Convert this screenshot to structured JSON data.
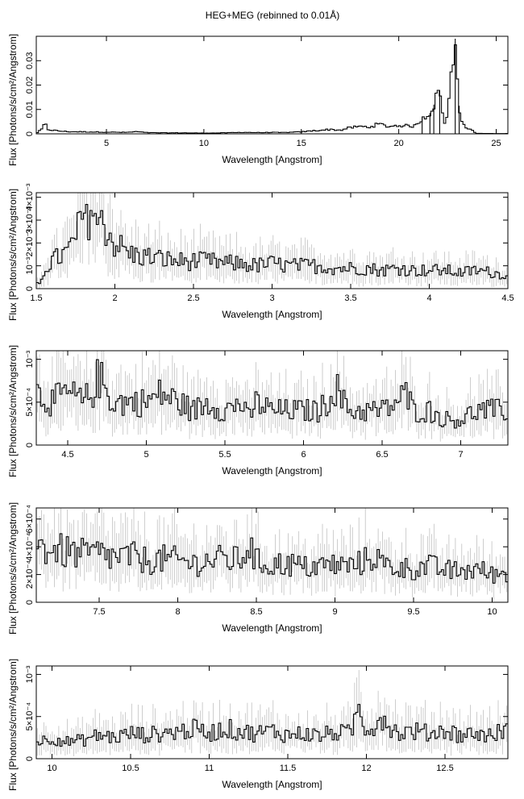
{
  "figure": {
    "title": "HEG+MEG (rebinned to 0.01Å)"
  },
  "colors": {
    "spectrum": "#000000",
    "error_bars": "#b8b8b8",
    "frame": "#000000",
    "background": "#ffffff"
  },
  "chart_data": [
    {
      "type": "line",
      "xlabel": "Wavelength [Angstrom]",
      "ylabel": "Flux [Photons/s/cm²/Angstrom]",
      "xlim": [
        1.4,
        25.6
      ],
      "ylim": [
        0,
        0.04
      ],
      "xticks": [
        5,
        10,
        15,
        20,
        25
      ],
      "xtick_labels": [
        "5",
        "10",
        "15",
        "20",
        "25"
      ],
      "yticks": [
        0,
        0.01,
        0.02,
        0.03
      ],
      "ytick_labels": [
        "0",
        "0.01",
        "0.02",
        "0.03"
      ],
      "series": [
        {
          "x": [
            1.5,
            1.6,
            1.7,
            1.8,
            1.85,
            1.9,
            2.0,
            2.5,
            3.0,
            4.0,
            5.0,
            6.0,
            6.6,
            7.0,
            8.0,
            9.0,
            10.0,
            11.0,
            12.0,
            13.0,
            13.5,
            14.0,
            15.0,
            15.5,
            16.0,
            16.5,
            17.0,
            17.5,
            18.0,
            18.5,
            18.97,
            19.5,
            20.0,
            20.5,
            20.9,
            21.2,
            21.6,
            21.8,
            22.1,
            22.4,
            22.9,
            23.1,
            23.3,
            24.0,
            25.0,
            25.5
          ],
          "y": [
            0.0005,
            0.0015,
            0.002,
            0.0035,
            0.003,
            0.0036,
            0.0018,
            0.0012,
            0.0009,
            0.0008,
            0.0007,
            0.0006,
            0.0009,
            0.0005,
            0.0004,
            0.0004,
            0.0003,
            0.0004,
            0.0006,
            0.0005,
            0.0006,
            0.0005,
            0.0008,
            0.0012,
            0.0015,
            0.0018,
            0.0015,
            0.0025,
            0.003,
            0.0028,
            0.004,
            0.003,
            0.0035,
            0.0032,
            0.0033,
            0.0065,
            0.0085,
            0.012,
            0.018,
            0.0015,
            0.039,
            0.0115,
            0.0035,
            0.0002,
            0.0001,
            0.0001
          ]
        }
      ]
    },
    {
      "type": "line",
      "xlabel": "Wavelength [Angstrom]",
      "ylabel": "Flux [Photons/s/cm²/Angstrom]",
      "xlim": [
        1.5,
        4.5
      ],
      "ylim": [
        0,
        0.0042
      ],
      "xticks": [
        1.5,
        2,
        2.5,
        3,
        3.5,
        4,
        4.5
      ],
      "xtick_labels": [
        "1.5",
        "2",
        "2.5",
        "3",
        "3.5",
        "4",
        "4.5"
      ],
      "yticks": [
        0,
        0.001,
        0.002,
        0.003,
        0.004
      ],
      "ytick_labels": [
        "0",
        "10⁻³",
        "2×10⁻³",
        "3×10⁻³",
        "4×10⁻³"
      ],
      "series": [
        {
          "x": [
            1.52,
            1.55,
            1.6,
            1.65,
            1.7,
            1.75,
            1.78,
            1.8,
            1.82,
            1.85,
            1.88,
            1.9,
            1.92,
            1.95,
            2.0,
            2.1,
            2.2,
            2.3,
            2.4,
            2.5,
            2.6,
            2.7,
            2.8,
            2.9,
            3.0,
            3.1,
            3.2,
            3.3,
            3.4,
            3.5,
            3.6,
            3.7,
            3.8,
            3.9,
            4.0,
            4.1,
            4.2,
            4.3,
            4.4,
            4.48
          ],
          "y": [
            0.0002,
            0.0008,
            0.0012,
            0.0014,
            0.0016,
            0.0022,
            0.0028,
            0.0033,
            0.0028,
            0.0038,
            0.003,
            0.0024,
            0.0034,
            0.0025,
            0.002,
            0.0015,
            0.0014,
            0.0013,
            0.0012,
            0.0012,
            0.0012,
            0.0011,
            0.0011,
            0.001,
            0.0011,
            0.001,
            0.001,
            0.001,
            0.0009,
            0.0009,
            0.0009,
            0.0008,
            0.0009,
            0.0008,
            0.0008,
            0.0008,
            0.0007,
            0.0008,
            0.0007,
            0.0006
          ]
        }
      ]
    },
    {
      "type": "line",
      "xlabel": "Wavelength [Angstrom]",
      "ylabel": "Flux [Photons/s/cm²/Angstrom]",
      "xlim": [
        4.3,
        7.3
      ],
      "ylim": [
        0,
        0.0011
      ],
      "xticks": [
        4.5,
        5,
        5.5,
        6,
        6.5,
        7
      ],
      "xtick_labels": [
        "4.5",
        "5",
        "5.5",
        "6",
        "6.5",
        "7"
      ],
      "yticks": [
        0,
        0.0005,
        0.001
      ],
      "ytick_labels": [
        "0",
        "5×10⁻⁴",
        "10⁻³"
      ],
      "series": [
        {
          "x": [
            4.32,
            4.4,
            4.5,
            4.6,
            4.65,
            4.7,
            4.75,
            4.8,
            4.9,
            5.0,
            5.1,
            5.2,
            5.3,
            5.4,
            5.5,
            5.6,
            5.65,
            5.7,
            5.8,
            5.9,
            6.0,
            6.1,
            6.15,
            6.2,
            6.25,
            6.3,
            6.4,
            6.5,
            6.6,
            6.65,
            6.7,
            6.8,
            6.9,
            7.0,
            7.1,
            7.2,
            7.28
          ],
          "y": [
            0.0006,
            0.0005,
            0.0006,
            0.0005,
            0.0006,
            0.0008,
            0.0006,
            0.0005,
            0.0005,
            0.0005,
            0.0006,
            0.0005,
            0.0004,
            0.0005,
            0.0004,
            0.0005,
            0.0003,
            0.0005,
            0.0004,
            0.0004,
            0.0004,
            0.0004,
            0.0005,
            0.0007,
            0.0005,
            0.0004,
            0.0004,
            0.0004,
            0.0005,
            0.0006,
            0.0004,
            0.0004,
            0.0003,
            0.0003,
            0.0004,
            0.0004,
            0.0004
          ]
        }
      ]
    },
    {
      "type": "line",
      "xlabel": "Wavelength [Angstrom]",
      "ylabel": "Flux [Photons/s/cm²/Angstrom]",
      "xlim": [
        7.1,
        10.1
      ],
      "ylim": [
        0,
        0.00068
      ],
      "xticks": [
        7.5,
        8,
        8.5,
        9,
        9.5,
        10
      ],
      "xtick_labels": [
        "7.5",
        "8",
        "8.5",
        "9",
        "9.5",
        "10"
      ],
      "yticks": [
        0,
        0.0002,
        0.0004,
        0.0006
      ],
      "ytick_labels": [
        "0",
        "2×10⁻⁴",
        "4×10⁻⁴",
        "6×10⁻⁴"
      ],
      "series": [
        {
          "x": [
            7.12,
            7.2,
            7.3,
            7.4,
            7.5,
            7.6,
            7.7,
            7.8,
            7.9,
            8.0,
            8.1,
            8.2,
            8.3,
            8.4,
            8.45,
            8.5,
            8.6,
            8.7,
            8.8,
            8.9,
            9.0,
            9.1,
            9.2,
            9.25,
            9.3,
            9.4,
            9.5,
            9.6,
            9.7,
            9.8,
            9.9,
            10.0,
            10.08
          ],
          "y": [
            0.0004,
            0.00038,
            0.00036,
            0.00034,
            0.00035,
            0.00032,
            0.00033,
            0.0003,
            0.00031,
            0.0003,
            0.00028,
            0.0003,
            0.00031,
            0.0003,
            0.00042,
            0.00029,
            0.00027,
            0.00028,
            0.00025,
            0.00026,
            0.00027,
            0.00026,
            0.0003,
            0.00035,
            0.00027,
            0.00025,
            0.00024,
            0.00026,
            0.00023,
            0.00022,
            0.00024,
            0.0002,
            0.00021
          ]
        }
      ]
    },
    {
      "type": "line",
      "xlabel": "Wavelength [Angstrom]",
      "ylabel": "Flux [Photons/s/cm²/Angstrom]",
      "xlim": [
        9.9,
        12.9
      ],
      "ylim": [
        0,
        0.0011
      ],
      "xticks": [
        10,
        10.5,
        11,
        11.5,
        12,
        12.5
      ],
      "xtick_labels": [
        "10",
        "10.5",
        "11",
        "11.5",
        "12",
        "12.5"
      ],
      "yticks": [
        0,
        0.0005,
        0.001
      ],
      "ytick_labels": [
        "0",
        "5×10⁻⁴",
        "10⁻³"
      ],
      "series": [
        {
          "x": [
            9.92,
            10.0,
            10.1,
            10.2,
            10.3,
            10.4,
            10.5,
            10.6,
            10.7,
            10.8,
            10.9,
            11.0,
            11.1,
            11.2,
            11.3,
            11.4,
            11.5,
            11.6,
            11.7,
            11.8,
            11.9,
            11.95,
            12.0,
            12.05,
            12.1,
            12.2,
            12.3,
            12.4,
            12.5,
            12.6,
            12.7,
            12.8,
            12.88
          ],
          "y": [
            0.0002,
            0.00025,
            0.0002,
            0.00022,
            0.00028,
            0.00025,
            0.0003,
            0.00028,
            0.0003,
            0.00032,
            0.00035,
            0.0003,
            0.00036,
            0.00032,
            0.0003,
            0.00033,
            0.00028,
            0.0003,
            0.00027,
            0.00031,
            0.0003,
            0.0006,
            0.00035,
            0.0004,
            0.0005,
            0.0003,
            0.00033,
            0.0003,
            0.00034,
            0.00028,
            0.0003,
            0.00027,
            0.00035
          ]
        }
      ]
    }
  ]
}
